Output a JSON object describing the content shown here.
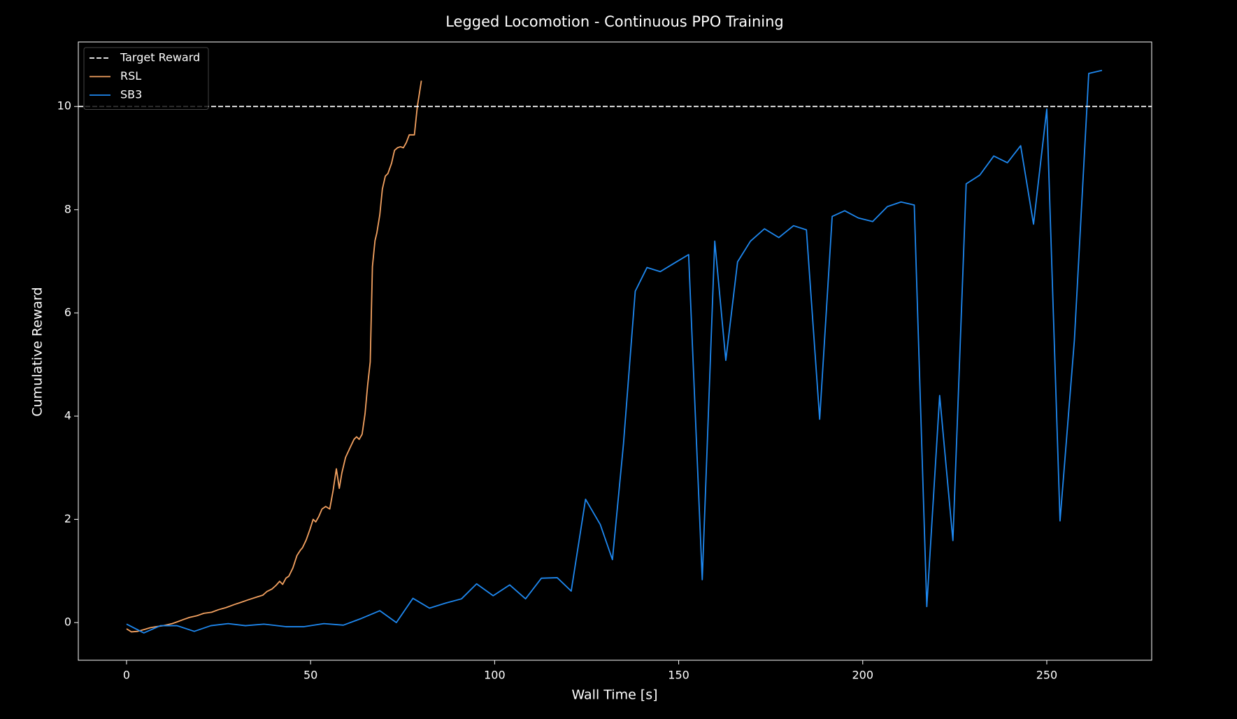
{
  "chart_data": {
    "type": "line",
    "title": "Legged Locomotion - Continuous PPO Training",
    "x_label": "Wall Time [s]",
    "y_label": "Cumulative Reward",
    "xlim": [
      -13.1,
      278.5
    ],
    "ylim": [
      -0.73,
      11.25
    ],
    "xticks": [
      0,
      50,
      100,
      150,
      200,
      250
    ],
    "yticks": [
      0,
      2,
      4,
      6,
      8,
      10
    ],
    "grid": false,
    "legend": "upper left",
    "target_line": {
      "name": "Target Reward",
      "value": 10,
      "color": "#ffffff"
    },
    "series": [
      {
        "name": "RSL",
        "color": "#f4a261",
        "x": [
          0,
          1.3,
          3,
          5,
          6.4,
          8,
          10,
          12.4,
          14,
          15.5,
          17.1,
          19,
          21,
          23.1,
          25,
          27,
          29.3,
          31,
          33,
          35.6,
          37,
          38.1,
          39.5,
          40.6,
          41.6,
          42.4,
          43.3,
          44.1,
          45.2,
          46.3,
          47.2,
          47.8,
          48.8,
          49.8,
          50.7,
          51.4,
          52.2,
          53.1,
          54.1,
          55.2,
          56.1,
          57,
          57.8,
          58.5,
          59.5,
          60.8,
          61.8,
          62.5,
          63.2,
          64,
          64.8,
          65.5,
          66.2,
          66.8,
          67.5,
          68,
          68.8,
          69.5,
          70.3,
          71,
          72,
          72.8,
          73.6,
          74.4,
          75.2,
          76,
          76.8,
          78.2,
          79,
          80.1
        ],
        "values": [
          -0.12,
          -0.18,
          -0.17,
          -0.13,
          -0.1,
          -0.08,
          -0.06,
          -0.02,
          0.02,
          0.06,
          0.1,
          0.13,
          0.18,
          0.2,
          0.25,
          0.29,
          0.35,
          0.39,
          0.44,
          0.5,
          0.53,
          0.6,
          0.65,
          0.72,
          0.8,
          0.74,
          0.86,
          0.9,
          1.06,
          1.3,
          1.4,
          1.45,
          1.6,
          1.8,
          2.0,
          1.95,
          2.05,
          2.2,
          2.25,
          2.2,
          2.55,
          2.98,
          2.6,
          2.9,
          3.2,
          3.4,
          3.55,
          3.6,
          3.55,
          3.65,
          4.05,
          4.6,
          5.05,
          6.9,
          7.4,
          7.55,
          7.9,
          8.4,
          8.65,
          8.7,
          8.9,
          9.15,
          9.2,
          9.22,
          9.2,
          9.3,
          9.45,
          9.45,
          10,
          10.5
        ]
      },
      {
        "name": "SB3",
        "color": "#1e88f0",
        "x": [
          0,
          4.7,
          9.2,
          13.7,
          18.4,
          22.9,
          27.6,
          32.3,
          37.3,
          43.3,
          48.2,
          53.6,
          58.9,
          63.8,
          68.8,
          73.3,
          77.8,
          82.3,
          86.8,
          91,
          95.1,
          99.6,
          104.1,
          108.4,
          112.7,
          117,
          120.8,
          124.7,
          128.7,
          132,
          135,
          138.2,
          141.4,
          145,
          148.7,
          152.7,
          156.4,
          159.8,
          162.8,
          166,
          169.5,
          173.3,
          177.2,
          181.2,
          184.7,
          188.3,
          191.7,
          195.1,
          198.8,
          202.7,
          206.7,
          210.4,
          214,
          217.4,
          220.9,
          224.5,
          228.1,
          231.8,
          235.6,
          239.3,
          242.9,
          246.4,
          250,
          253.6,
          257.5,
          261.4,
          265
        ],
        "values": [
          -0.03,
          -0.2,
          -0.06,
          -0.06,
          -0.17,
          -0.06,
          -0.02,
          -0.06,
          -0.03,
          -0.08,
          -0.08,
          -0.02,
          -0.05,
          0.08,
          0.23,
          0,
          0.47,
          0.28,
          0.38,
          0.46,
          0.75,
          0.52,
          0.73,
          0.46,
          0.86,
          0.87,
          0.61,
          2.39,
          1.9,
          1.22,
          3.46,
          6.42,
          6.88,
          6.8,
          6.96,
          7.13,
          0.83,
          7.39,
          5.08,
          6.99,
          7.39,
          7.63,
          7.46,
          7.69,
          7.61,
          3.94,
          7.87,
          7.98,
          7.84,
          7.77,
          8.06,
          8.15,
          8.09,
          0.31,
          4.4,
          1.59,
          8.5,
          8.67,
          9.04,
          8.91,
          9.24,
          7.72,
          9.95,
          1.97,
          5.47,
          10.64,
          10.7
        ]
      }
    ]
  }
}
